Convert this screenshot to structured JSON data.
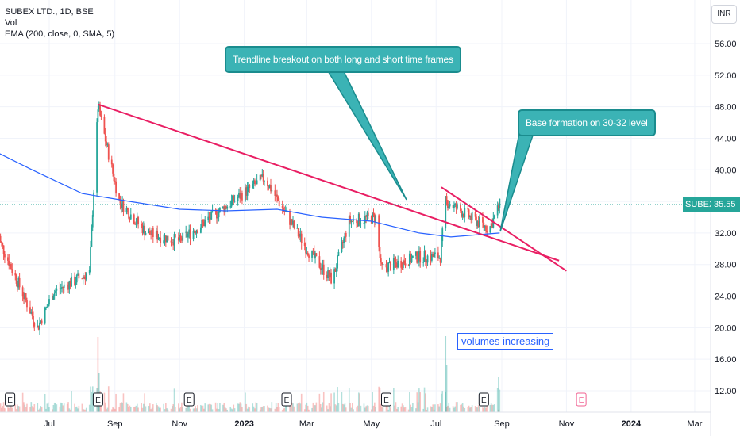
{
  "legend": {
    "symbol_line": "SUBEX LTD., 1D, BSE",
    "volume_label": "Vol",
    "ema_label": "EMA (200, close, 0, SMA, 5)"
  },
  "currency_button": "INR",
  "annotations": {
    "trendline_breakout": "Trendline breakout on both long and short time frames",
    "base_formation": "Base formation on 30-32 level",
    "volumes": "volumes increasing"
  },
  "last_price": {
    "symbol": "SUBEX",
    "value": "35.55"
  },
  "earnings_marker_label": "E",
  "colors": {
    "up": "#26a69a",
    "down": "#ef5350",
    "ema": "#2962ff",
    "trendline": "#e91e63",
    "callout_bg": "#3bb3b5",
    "grid": "#f0f3fa",
    "axis_text": "#131722"
  },
  "chart_data": {
    "type": "candlestick",
    "title": "SUBEX LTD., 1D, BSE",
    "y_ticks": [
      "12.00",
      "16.00",
      "20.00",
      "24.00",
      "28.00",
      "32.00",
      "36.00",
      "40.00",
      "44.00",
      "48.00",
      "52.00",
      "56.00"
    ],
    "ylim": [
      10,
      58
    ],
    "x_ticks": [
      "Jul",
      "Sep",
      "Nov",
      "2023",
      "Mar",
      "May",
      "Jul",
      "Sep",
      "Nov",
      "2024",
      "Mar"
    ],
    "x_tick_dates": [
      "2022-07-01",
      "2022-09-01",
      "2022-11-01",
      "2023-01-01",
      "2023-03-01",
      "2023-05-01",
      "2023-07-01",
      "2023-09-01",
      "2023-11-01",
      "2024-01-01",
      "2024-03-01"
    ],
    "last_value": 35.55,
    "price_key_points": [
      {
        "date": "2022-05-12",
        "close": 32.0
      },
      {
        "date": "2022-06-20",
        "close": 20.0
      },
      {
        "date": "2022-07-05",
        "close": 24.5
      },
      {
        "date": "2022-08-08",
        "close": 27.0
      },
      {
        "date": "2022-08-16",
        "close": 48.0
      },
      {
        "date": "2022-09-05",
        "close": 36.0
      },
      {
        "date": "2022-10-01",
        "close": 32.0
      },
      {
        "date": "2022-11-01",
        "close": 31.0
      },
      {
        "date": "2022-12-01",
        "close": 34.0
      },
      {
        "date": "2023-01-20",
        "close": 39.0
      },
      {
        "date": "2023-03-01",
        "close": 30.0
      },
      {
        "date": "2023-03-25",
        "close": 26.0
      },
      {
        "date": "2023-04-10",
        "close": 33.5
      },
      {
        "date": "2023-05-05",
        "close": 34.0
      },
      {
        "date": "2023-05-10",
        "close": 27.5
      },
      {
        "date": "2023-06-15",
        "close": 29.0
      },
      {
        "date": "2023-07-05",
        "close": 29.0
      },
      {
        "date": "2023-07-10",
        "close": 36.0
      },
      {
        "date": "2023-08-20",
        "close": 32.5
      },
      {
        "date": "2023-08-30",
        "close": 35.55
      }
    ],
    "ema200": [
      {
        "date": "2022-05-01",
        "value": 43.0
      },
      {
        "date": "2022-06-15",
        "value": 40.0
      },
      {
        "date": "2022-08-01",
        "value": 37.0
      },
      {
        "date": "2022-09-15",
        "value": 36.0
      },
      {
        "date": "2022-11-01",
        "value": 35.0
      },
      {
        "date": "2022-12-15",
        "value": 34.8
      },
      {
        "date": "2023-02-01",
        "value": 35.0
      },
      {
        "date": "2023-03-15",
        "value": 34.0
      },
      {
        "date": "2023-05-01",
        "value": 33.5
      },
      {
        "date": "2023-06-15",
        "value": 32.0
      },
      {
        "date": "2023-07-15",
        "value": 31.5
      },
      {
        "date": "2023-08-30",
        "value": 32.0
      }
    ],
    "trendlines": [
      {
        "start": {
          "date": "2022-08-16",
          "value": 48.3
        },
        "end": {
          "date": "2023-10-25",
          "value": 28.5
        }
      },
      {
        "start": {
          "date": "2023-07-06",
          "value": 37.8
        },
        "end": {
          "date": "2023-11-01",
          "value": 27.2
        }
      }
    ],
    "earnings_dates": [
      "2022-05-25",
      "2022-08-16",
      "2022-11-10",
      "2023-02-10",
      "2023-05-15",
      "2023-08-15",
      "2023-11-15"
    ]
  }
}
